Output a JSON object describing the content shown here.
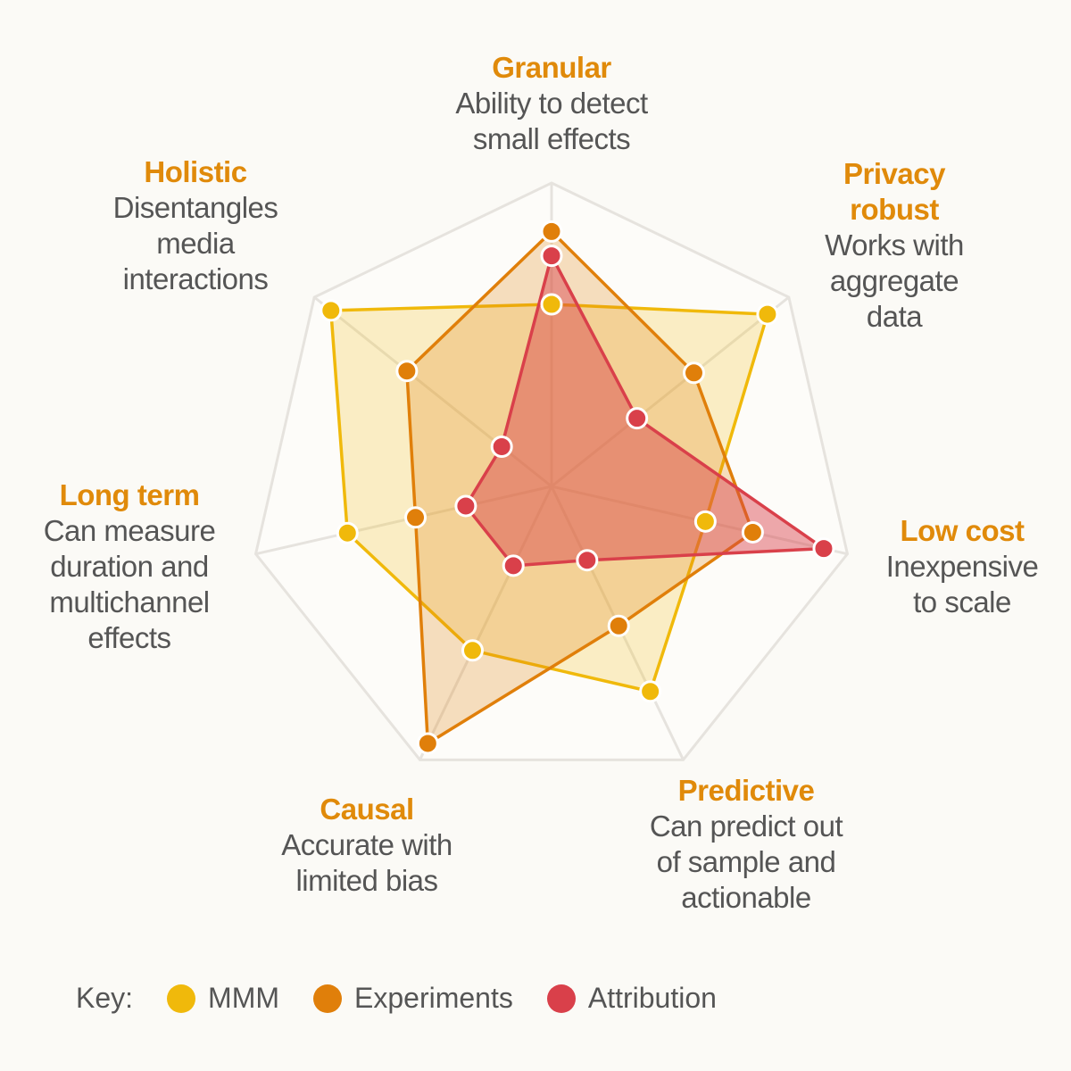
{
  "chart_data": {
    "type": "radar",
    "scale": [
      0,
      1
    ],
    "grid_rings": 5,
    "grid": true,
    "axes": [
      {
        "title": "Granular",
        "description": "Ability to detect\nsmall effects"
      },
      {
        "title": "Privacy\nrobust",
        "description": "Works with\naggregate\ndata"
      },
      {
        "title": "Low cost",
        "description": "Inexpensive\nto scale"
      },
      {
        "title": "Predictive",
        "description": "Can predict out\nof sample and\nactionable"
      },
      {
        "title": "Causal",
        "description": "Accurate with\nlimited bias"
      },
      {
        "title": "Long term",
        "description": "Can measure\nduration and\nmultichannel\neffects"
      },
      {
        "title": "Holistic",
        "description": "Disentangles\nmedia\ninteractions"
      }
    ],
    "series": [
      {
        "name": "MMM",
        "color": "#f0b90b",
        "values": [
          0.6,
          0.91,
          0.52,
          0.75,
          0.6,
          0.69,
          0.93
        ]
      },
      {
        "name": "Experiments",
        "color": "#e07f0a",
        "values": [
          0.84,
          0.6,
          0.68,
          0.51,
          0.94,
          0.46,
          0.61
        ]
      },
      {
        "name": "Attribution",
        "color": "#d9404a",
        "values": [
          0.76,
          0.36,
          0.92,
          0.27,
          0.29,
          0.29,
          0.21
        ]
      }
    ],
    "legend": {
      "title": "Key:",
      "placement": "bottom-left"
    }
  }
}
